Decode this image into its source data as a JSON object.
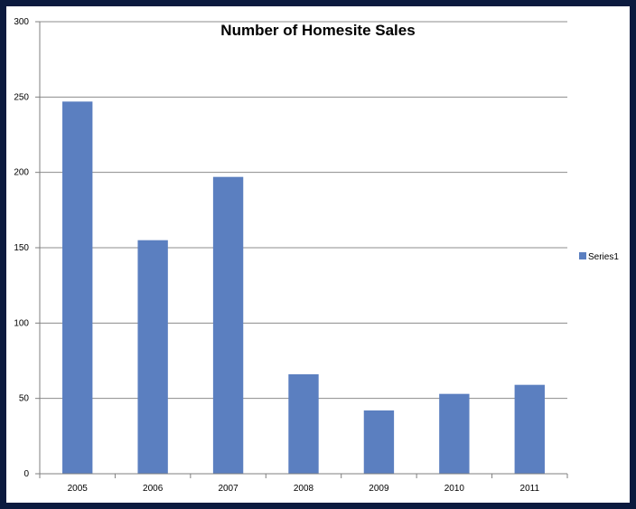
{
  "chart_data": {
    "type": "bar",
    "title": "Number of Homesite Sales",
    "xlabel": "",
    "ylabel": "",
    "categories": [
      "2005",
      "2006",
      "2007",
      "2008",
      "2009",
      "2010",
      "2011"
    ],
    "series": [
      {
        "name": "Series1",
        "values": [
          247,
          155,
          197,
          66,
          42,
          53,
          59
        ],
        "color": "#5b7fc0"
      }
    ],
    "ylim": [
      0,
      300
    ],
    "yticks": [
      "0",
      "50",
      "100",
      "150",
      "200",
      "250",
      "300"
    ],
    "grid": true,
    "legend_position": "right"
  },
  "colors": {
    "frame": "#0b1a3e",
    "gridline": "#8c8c8c",
    "bar": "#5b7fc0"
  }
}
